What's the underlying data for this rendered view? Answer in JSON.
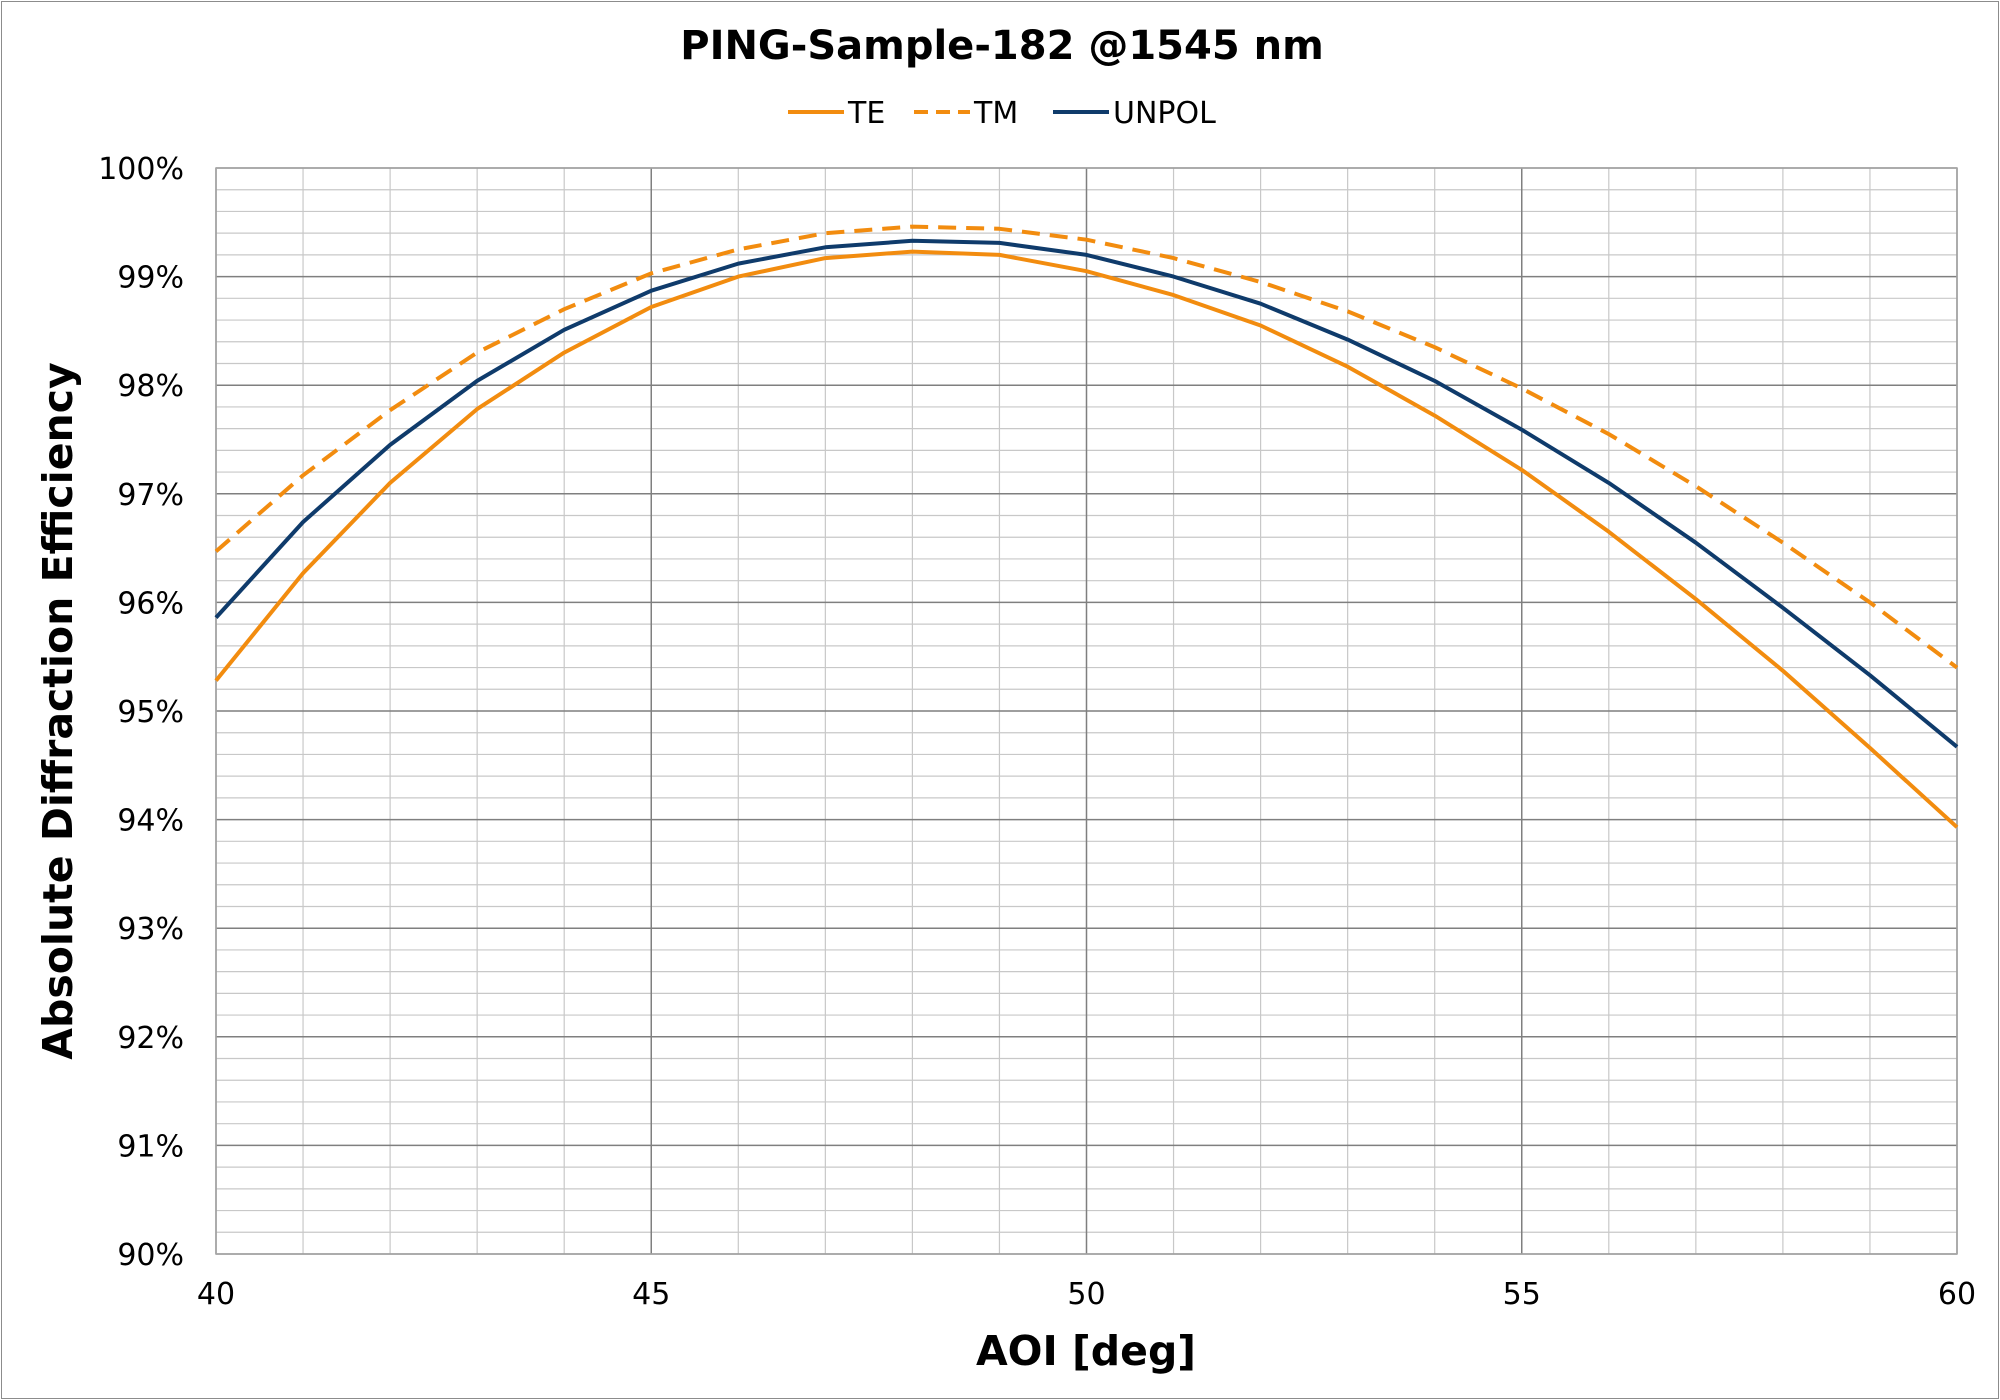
{
  "chart_data": {
    "type": "line",
    "title": "PING-Sample-182 @1545 nm",
    "xlabel": "AOI [deg]",
    "ylabel": "Absolute Diffraction Efficiency",
    "xlim": [
      40,
      60
    ],
    "ylim": [
      0.9,
      1.0
    ],
    "x_major_step": 5,
    "x_minor_step": 1,
    "y_major_step": 0.01,
    "y_minor_step": 0.002,
    "x_tick_labels": [
      "40",
      "45",
      "50",
      "55",
      "60"
    ],
    "y_tick_labels": [
      "90%",
      "91%",
      "92%",
      "93%",
      "94%",
      "95%",
      "96%",
      "97%",
      "98%",
      "99%",
      "100%"
    ],
    "grid": true,
    "legend_position": "top",
    "x": [
      40,
      41,
      42,
      43,
      44,
      45,
      46,
      47,
      48,
      49,
      50,
      51,
      52,
      53,
      54,
      55,
      56,
      57,
      58,
      59,
      60
    ],
    "series": [
      {
        "name": "TE",
        "color": "#f28c0f",
        "dash": "solid",
        "values": [
          0.9528,
          0.9627,
          0.971,
          0.9778,
          0.983,
          0.9872,
          0.99,
          0.9917,
          0.9923,
          0.992,
          0.9905,
          0.9883,
          0.9855,
          0.9817,
          0.9772,
          0.9722,
          0.9665,
          0.9603,
          0.9537,
          0.9466,
          0.9393
        ]
      },
      {
        "name": "TM",
        "color": "#f28c0f",
        "dash": "dashed",
        "values": [
          0.9647,
          0.9717,
          0.9777,
          0.983,
          0.987,
          0.9903,
          0.9925,
          0.994,
          0.9946,
          0.9944,
          0.9934,
          0.9917,
          0.9895,
          0.9868,
          0.9835,
          0.9797,
          0.9755,
          0.9707,
          0.9655,
          0.96,
          0.954
        ]
      },
      {
        "name": "UNPOL",
        "color": "#0f3b6b",
        "dash": "solid",
        "values": [
          0.9586,
          0.9674,
          0.9745,
          0.9804,
          0.9851,
          0.9887,
          0.9912,
          0.9927,
          0.9933,
          0.9931,
          0.992,
          0.99,
          0.9875,
          0.9842,
          0.9804,
          0.9759,
          0.971,
          0.9655,
          0.9595,
          0.9533,
          0.9467
        ]
      }
    ]
  }
}
